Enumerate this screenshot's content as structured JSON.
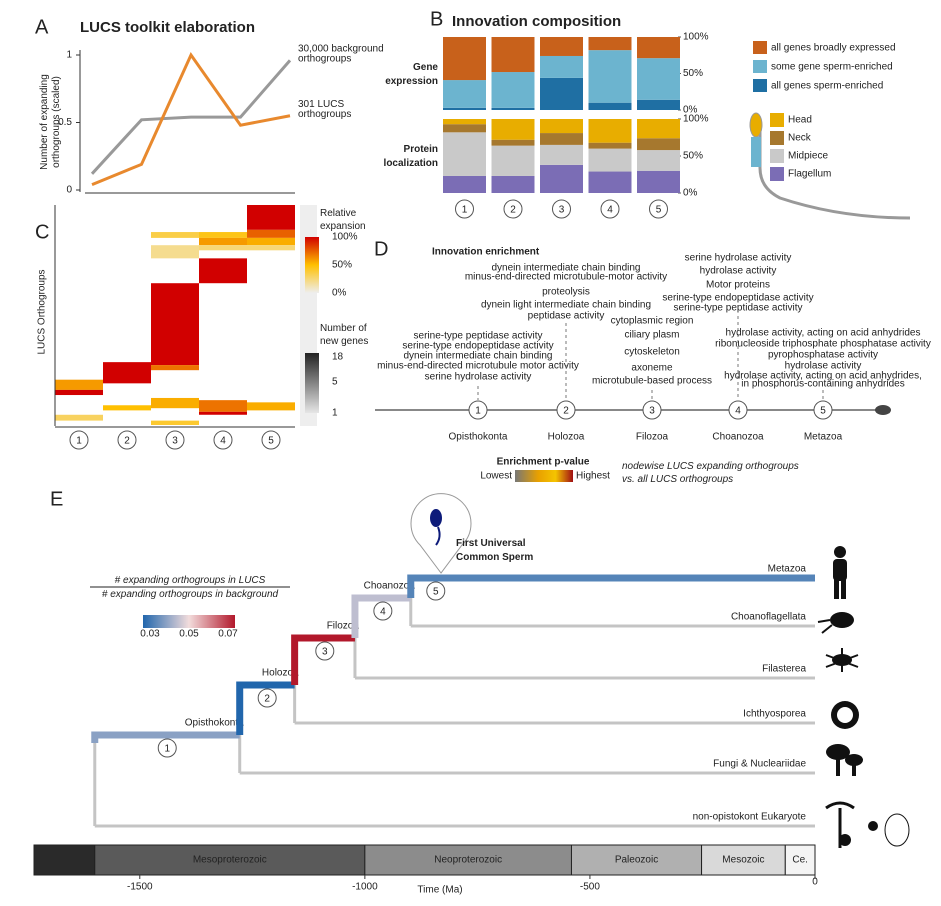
{
  "panel_a": {
    "letter": "A",
    "title": "LUCS toolkit elaboration",
    "y_label": [
      "Number of expanding",
      "orthogroups (scaled)"
    ],
    "ylim": [
      0,
      1
    ],
    "yticks": [
      0,
      0.5,
      1
    ],
    "series": [
      {
        "name": [
          "30,000 background",
          "orthogroups"
        ],
        "color": "#999999",
        "values": [
          0.12,
          0.52,
          0.54,
          0.54,
          0.96
        ]
      },
      {
        "name": [
          "301 LUCS",
          "orthogroups"
        ],
        "color": "#e8892e",
        "values": [
          0.04,
          0.19,
          1.0,
          0.48,
          0.55
        ]
      }
    ]
  },
  "panel_b": {
    "letter": "B",
    "title": "Innovation composition",
    "categories": [
      "1",
      "2",
      "3",
      "4",
      "5"
    ],
    "ylim": [
      0,
      100
    ],
    "groups": [
      {
        "label": [
          "Gene",
          "expression"
        ],
        "yticks": [
          {
            "value": 0,
            "label": "0%"
          },
          {
            "value": 50,
            "label": "50%"
          },
          {
            "value": 100,
            "label": "100%"
          }
        ],
        "series": [
          {
            "name": "all genes sperm-enriched",
            "color": "#1f6fa3",
            "values": [
              3,
              3,
              44,
              10,
              14
            ]
          },
          {
            "name": "some gene sperm-enriched",
            "color": "#6cb4cf",
            "values": [
              38,
              49,
              30,
              72,
              57
            ]
          },
          {
            "name": "all genes broadly expressed",
            "color": "#c8611b",
            "values": [
              59,
              48,
              26,
              18,
              29
            ]
          }
        ]
      },
      {
        "label": [
          "Protein",
          "localization"
        ],
        "yticks": [
          {
            "value": 0,
            "label": "0%"
          },
          {
            "value": 50,
            "label": "50%"
          },
          {
            "value": 100,
            "label": "100%"
          }
        ],
        "series": [
          {
            "name": "Flagellum",
            "color": "#7b6db5",
            "values": [
              23,
              23,
              38,
              29,
              30
            ]
          },
          {
            "name": "Midpiece",
            "color": "#c9c9c9",
            "values": [
              59,
              41,
              27,
              31,
              28
            ]
          },
          {
            "name": "Neck",
            "color": "#a6782e",
            "values": [
              11,
              8,
              16,
              8,
              16
            ]
          },
          {
            "name": "Head",
            "color": "#e8ad00",
            "values": [
              7,
              28,
              19,
              32,
              26
            ]
          }
        ]
      }
    ]
  },
  "panel_c": {
    "letter": "C",
    "y_label": "LUCS Orthogroups",
    "categories": [
      "1",
      "2",
      "3",
      "4",
      "5"
    ],
    "ylim": [
      0,
      301
    ],
    "cells": [
      {
        "column": 4,
        "rows": [
          0,
          34
        ],
        "value": 100
      },
      {
        "column": 4,
        "rows": [
          34,
          45
        ],
        "value": 75
      },
      {
        "column": 4,
        "rows": [
          45,
          55
        ],
        "value": 55
      },
      {
        "column": 3,
        "rows": [
          37,
          45
        ],
        "value": 45
      },
      {
        "column": 3,
        "rows": [
          45,
          55
        ],
        "value": 60
      },
      {
        "column": 3,
        "rows": [
          73,
          107
        ],
        "value": 100
      },
      {
        "column": 2,
        "rows": [
          37,
          45
        ],
        "value": 35
      },
      {
        "column": 2,
        "rows": [
          55,
          73
        ],
        "value": 20
      },
      {
        "column": 3,
        "rows": [
          55,
          62
        ],
        "value": 25
      },
      {
        "column": 4,
        "rows": [
          55,
          62
        ],
        "value": 25
      },
      {
        "column": 2,
        "rows": [
          107,
          219
        ],
        "value": 100
      },
      {
        "column": 2,
        "rows": [
          219,
          226
        ],
        "value": 70
      },
      {
        "column": 1,
        "rows": [
          215,
          244
        ],
        "value": 100
      },
      {
        "column": 0,
        "rows": [
          239,
          253
        ],
        "value": 60
      },
      {
        "column": 0,
        "rows": [
          253,
          260
        ],
        "value": 100
      },
      {
        "column": 1,
        "rows": [
          274,
          281
        ],
        "value": 50
      },
      {
        "column": 2,
        "rows": [
          264,
          278
        ],
        "value": 55
      },
      {
        "column": 3,
        "rows": [
          267,
          283
        ],
        "value": 70
      },
      {
        "column": 3,
        "rows": [
          283,
          287
        ],
        "value": 100
      },
      {
        "column": 4,
        "rows": [
          270,
          281
        ],
        "value": 55
      },
      {
        "column": 0,
        "rows": [
          287,
          295
        ],
        "value": 30
      },
      {
        "column": 2,
        "rows": [
          295,
          301
        ],
        "value": 40
      }
    ],
    "legend_title": [
      "Relative",
      "expansion"
    ],
    "legend_ticks": [
      {
        "value": 100,
        "label": "100%"
      },
      {
        "value": 50,
        "label": "50%"
      },
      {
        "value": 0,
        "label": "0%"
      }
    ],
    "genes_title": [
      "Number of",
      "new genes"
    ],
    "genes_lim": [
      1,
      18
    ],
    "genes_ticks": [
      18,
      5,
      1
    ]
  },
  "panel_d": {
    "letter": "D",
    "title": "Innovation enrichment",
    "nodes": [
      {
        "number": "1",
        "label": "Opisthokonta",
        "terms": [
          "serine-type peptidase activity",
          "serine-type endopeptidase activity",
          "dynein intermediate chain binding",
          "minus-end-directed microtubule motor activity",
          "serine hydrolase activity"
        ]
      },
      {
        "number": "2",
        "label": "Holozoa",
        "terms": [
          "dynein intermediate chain binding",
          "minus-end-directed microtubule-motor activity",
          "proteolysis",
          "dynein light intermediate chain binding",
          "peptidase activity"
        ]
      },
      {
        "number": "3",
        "label": "Filozoa",
        "terms": [
          "cytoplasmic region",
          "ciliary plasm",
          "cytoskeleton",
          "axoneme",
          "microtubule-based process"
        ]
      },
      {
        "number": "4",
        "label": "Choanozoa",
        "terms": [
          "serine hydrolase activity",
          "hydrolase activity",
          "Motor proteins",
          "serine-type endopeptidase activity",
          "serine-type peptidase activity"
        ]
      },
      {
        "number": "5",
        "label": "Metazoa",
        "terms": [
          "hydrolase activity, acting on acid anhydrides",
          "ribonucleoside triphosphate phosphatase activity",
          "pyrophosphatase activity",
          "hydrolase activity",
          "hydrolase activity, acting on acid anhydrides,",
          "in phosphorus-containing anhydrides"
        ]
      }
    ],
    "legend_title": "Enrichment p-value",
    "legend_low": "Lowest",
    "legend_high": "Highest",
    "note": [
      "nodewise LUCS expanding orthogroups",
      "vs. all LUCS orthogroups"
    ]
  },
  "panel_e": {
    "letter": "E",
    "xlim": [
      -1735,
      0
    ],
    "xticks": [
      -1500,
      -1000,
      -500,
      0
    ],
    "x_label": "Time (Ma)",
    "legend_title": [
      "# expanding orthogroups in LUCS",
      "# expanding orthogroups in background"
    ],
    "color_lim": [
      0.03,
      0.07
    ],
    "color_ticks": [
      0.03,
      0.05,
      0.07
    ],
    "root_time": -1600,
    "clades": [
      {
        "label": "Opisthokonta",
        "number": "1",
        "time": -1278,
        "value": 0.04
      },
      {
        "label": "Holozoa",
        "number": "2",
        "time": -1156,
        "value": 0.03
      },
      {
        "label": "Filozoa",
        "number": "3",
        "time": -1022,
        "value": 0.07
      },
      {
        "label": "Choanozoa",
        "number": "4",
        "time": -898,
        "value": 0.045
      }
    ],
    "crown": {
      "number": "5",
      "value": 0.035
    },
    "sperm_label": [
      "First Universal",
      "Common Sperm"
    ],
    "tips": [
      "Metazoa",
      "Choanoflagellata",
      "Filasterea",
      "Ichthyosporea",
      "Fungi & Nucleariidae",
      "non-opistokont Eukaryote"
    ],
    "eras": [
      {
        "name": "Mesoproterozoic",
        "start": -1600,
        "end": -1000,
        "color": "#5a5a5a"
      },
      {
        "name": "Neoproterozoic",
        "start": -1000,
        "end": -541,
        "color": "#8c8c8c"
      },
      {
        "name": "Paleozoic",
        "start": -541,
        "end": -252,
        "color": "#b0b0b0"
      },
      {
        "name": "Mesozoic",
        "start": -252,
        "end": -66,
        "color": "#d9d9d9"
      },
      {
        "name": "Ce.",
        "start": -66,
        "end": 0,
        "color": "#f4f4f4"
      }
    ]
  }
}
